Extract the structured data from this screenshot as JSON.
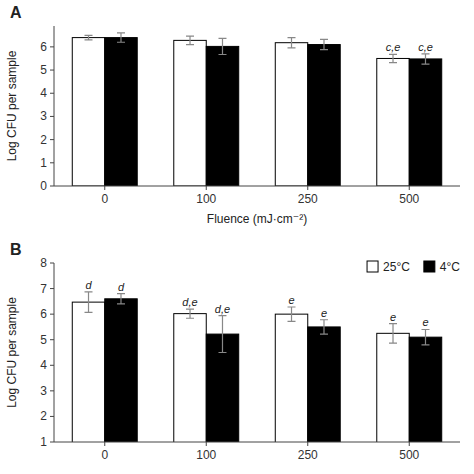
{
  "chart_data": [
    {
      "type": "bar",
      "title": "A",
      "categories": [
        "0",
        "100",
        "250",
        "500"
      ],
      "series": [
        {
          "color": "#ffffff",
          "values": [
            6.4,
            6.28,
            6.18,
            5.5
          ],
          "errors": [
            0.1,
            0.18,
            0.22,
            0.18
          ],
          "annotations": [
            null,
            null,
            null,
            "c,e"
          ]
        },
        {
          "color": "#000000",
          "values": [
            6.4,
            6.02,
            6.1,
            5.48
          ],
          "errors": [
            0.2,
            0.35,
            0.22,
            0.22
          ],
          "annotations": [
            null,
            null,
            null,
            "c,e"
          ]
        }
      ],
      "xlabel": "Fluence (mJ·cm⁻²)",
      "ylabel": "Log CFU per sample",
      "ylim": [
        0,
        6.9
      ],
      "yticks": [
        0,
        1,
        2,
        3,
        4,
        5,
        6
      ],
      "grid": false
    },
    {
      "type": "bar",
      "title": "B",
      "categories": [
        "0",
        "100",
        "250",
        "500"
      ],
      "series": [
        {
          "name": "25°C",
          "color": "#ffffff",
          "values": [
            6.47,
            6.02,
            6.0,
            5.25
          ],
          "errors": [
            0.4,
            0.18,
            0.28,
            0.38
          ],
          "annotations": [
            "d",
            "d,e",
            "e",
            "e"
          ]
        },
        {
          "name": "4°C",
          "color": "#000000",
          "values": [
            6.6,
            5.22,
            5.5,
            5.1
          ],
          "errors": [
            0.2,
            0.72,
            0.28,
            0.3
          ],
          "annotations": [
            "d",
            "d,e",
            "e",
            "e"
          ]
        }
      ],
      "ylabel": "Log CFU per sample",
      "ylim": [
        1,
        8
      ],
      "yticks": [
        1,
        2,
        3,
        4,
        5,
        6,
        7,
        8
      ],
      "grid": false,
      "legend": "upper right"
    }
  ]
}
